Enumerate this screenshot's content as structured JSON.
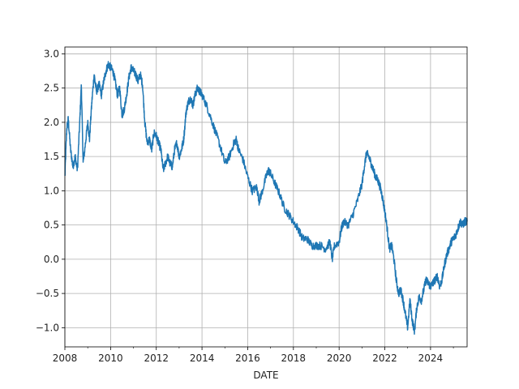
{
  "chart_data": {
    "type": "line",
    "title": "",
    "xlabel": "DATE",
    "ylabel": "",
    "xlim": [
      2008.0,
      2025.6
    ],
    "ylim": [
      -1.28,
      3.1
    ],
    "grid": true,
    "legend": "none",
    "x_ticks": [
      2008,
      2010,
      2012,
      2014,
      2016,
      2018,
      2020,
      2022,
      2024
    ],
    "x_tick_labels": [
      "2008",
      "2010",
      "2012",
      "2014",
      "2016",
      "2018",
      "2020",
      "2022",
      "2024"
    ],
    "y_ticks": [
      -1.0,
      -0.5,
      0.0,
      0.5,
      1.0,
      1.5,
      2.0,
      2.5,
      3.0
    ],
    "y_tick_labels": [
      "−1.0",
      "−0.5",
      "0.0",
      "0.5",
      "1.0",
      "1.5",
      "2.0",
      "2.5",
      "3.0"
    ],
    "series": [
      {
        "color": "#1f77b4",
        "x": [
          2008.0,
          2008.08,
          2008.15,
          2008.25,
          2008.35,
          2008.45,
          2008.55,
          2008.65,
          2008.72,
          2008.8,
          2008.9,
          2009.0,
          2009.08,
          2009.18,
          2009.28,
          2009.38,
          2009.5,
          2009.6,
          2009.7,
          2009.8,
          2009.9,
          2010.0,
          2010.1,
          2010.2,
          2010.3,
          2010.4,
          2010.5,
          2010.6,
          2010.7,
          2010.8,
          2010.9,
          2011.0,
          2011.1,
          2011.2,
          2011.3,
          2011.4,
          2011.5,
          2011.6,
          2011.7,
          2011.8,
          2011.9,
          2012.0,
          2012.1,
          2012.2,
          2012.3,
          2012.4,
          2012.5,
          2012.6,
          2012.7,
          2012.8,
          2012.9,
          2013.0,
          2013.1,
          2013.2,
          2013.3,
          2013.4,
          2013.5,
          2013.6,
          2013.7,
          2013.8,
          2013.9,
          2014.0,
          2014.2,
          2014.4,
          2014.6,
          2014.8,
          2015.0,
          2015.2,
          2015.4,
          2015.5,
          2015.6,
          2015.8,
          2016.0,
          2016.2,
          2016.4,
          2016.5,
          2016.6,
          2016.8,
          2016.9,
          2017.0,
          2017.2,
          2017.4,
          2017.6,
          2017.8,
          2018.0,
          2018.2,
          2018.4,
          2018.6,
          2018.8,
          2019.0,
          2019.2,
          2019.4,
          2019.6,
          2019.7,
          2019.8,
          2020.0,
          2020.1,
          2020.2,
          2020.4,
          2020.6,
          2020.8,
          2021.0,
          2021.1,
          2021.2,
          2021.3,
          2021.4,
          2021.5,
          2021.6,
          2021.7,
          2021.8,
          2021.9,
          2022.0,
          2022.1,
          2022.2,
          2022.3,
          2022.4,
          2022.5,
          2022.6,
          2022.7,
          2022.8,
          2022.9,
          2023.0,
          2023.1,
          2023.2,
          2023.3,
          2023.4,
          2023.5,
          2023.6,
          2023.7,
          2023.8,
          2023.9,
          2024.0,
          2024.1,
          2024.2,
          2024.3,
          2024.4,
          2024.5,
          2024.6,
          2024.7,
          2024.8,
          2024.9,
          2025.0,
          2025.1,
          2025.2,
          2025.3,
          2025.4,
          2025.5,
          2025.6
        ],
        "y": [
          1.2,
          1.9,
          2.05,
          1.6,
          1.35,
          1.5,
          1.3,
          2.0,
          2.55,
          1.4,
          1.7,
          2.0,
          1.75,
          2.3,
          2.7,
          2.45,
          2.55,
          2.4,
          2.6,
          2.75,
          2.85,
          2.8,
          2.75,
          2.6,
          2.4,
          2.5,
          2.1,
          2.2,
          2.4,
          2.65,
          2.8,
          2.75,
          2.7,
          2.6,
          2.7,
          2.55,
          2.0,
          1.7,
          1.75,
          1.6,
          1.85,
          1.8,
          1.7,
          1.6,
          1.3,
          1.4,
          1.5,
          1.4,
          1.35,
          1.6,
          1.7,
          1.5,
          1.6,
          1.75,
          2.15,
          2.3,
          2.35,
          2.25,
          2.4,
          2.5,
          2.45,
          2.4,
          2.25,
          2.05,
          1.85,
          1.65,
          1.4,
          1.5,
          1.7,
          1.75,
          1.6,
          1.45,
          1.2,
          1.0,
          1.05,
          0.85,
          0.95,
          1.2,
          1.3,
          1.25,
          1.1,
          0.95,
          0.75,
          0.65,
          0.55,
          0.45,
          0.3,
          0.3,
          0.2,
          0.2,
          0.2,
          0.15,
          0.25,
          0.0,
          0.2,
          0.25,
          0.45,
          0.55,
          0.5,
          0.65,
          0.85,
          1.1,
          1.35,
          1.55,
          1.5,
          1.4,
          1.3,
          1.2,
          1.15,
          1.05,
          0.9,
          0.7,
          0.45,
          0.15,
          0.2,
          0.0,
          -0.3,
          -0.5,
          -0.45,
          -0.6,
          -0.8,
          -1.0,
          -0.6,
          -0.9,
          -1.05,
          -0.7,
          -0.55,
          -0.6,
          -0.45,
          -0.3,
          -0.35,
          -0.4,
          -0.35,
          -0.3,
          -0.25,
          -0.4,
          -0.3,
          -0.1,
          0.05,
          0.15,
          0.25,
          0.3,
          0.35,
          0.45,
          0.55,
          0.5,
          0.55,
          0.55
        ]
      }
    ]
  }
}
